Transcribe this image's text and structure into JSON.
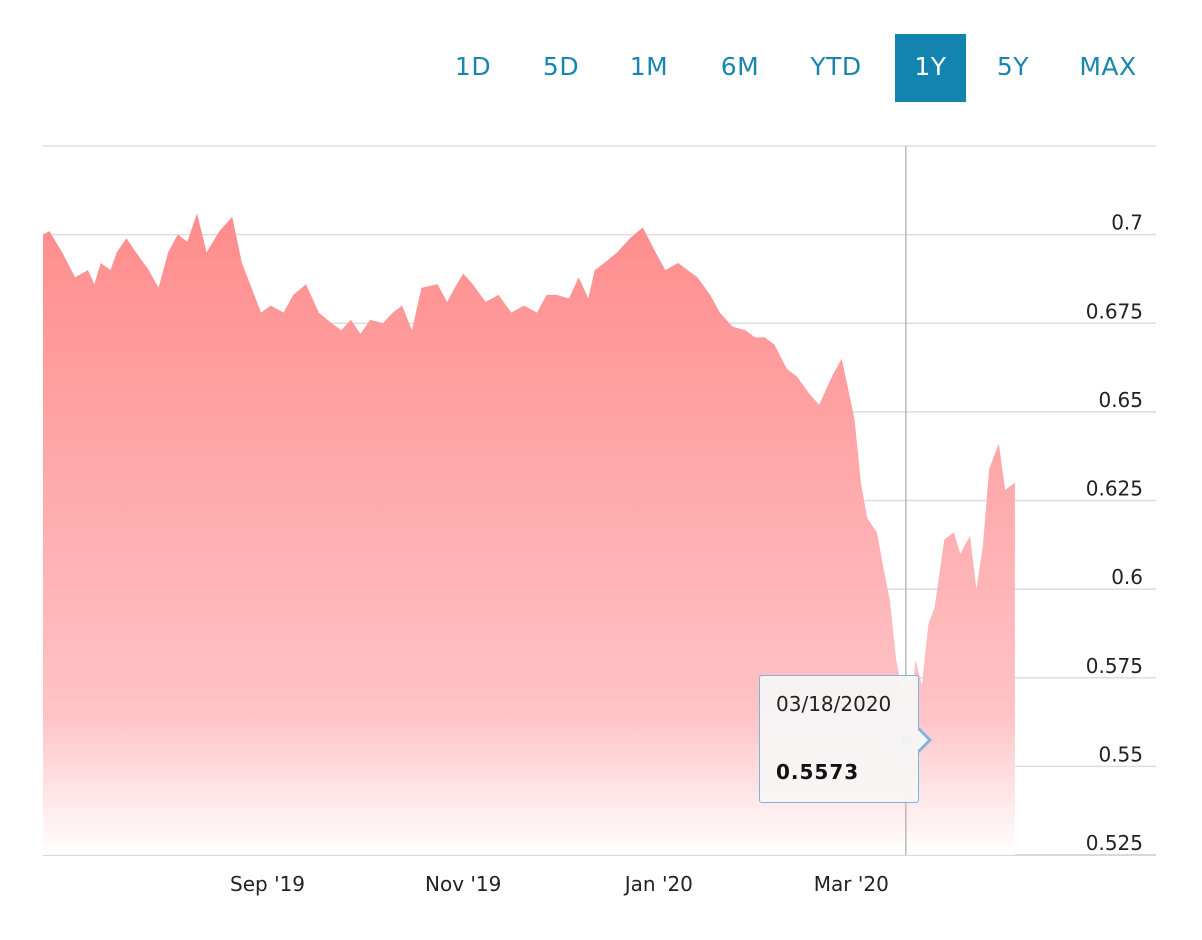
{
  "range_selector": {
    "buttons": [
      "1D",
      "5D",
      "1M",
      "6M",
      "YTD",
      "1Y",
      "5Y",
      "MAX"
    ],
    "active": "1Y"
  },
  "tooltip": {
    "date": "03/18/2020",
    "value": "0.5573"
  },
  "colors": {
    "accent": "#1384b0",
    "area_top": "#ff8c8c",
    "area_bottom": "#ffffff",
    "marker": "#4a90e2"
  },
  "chart_data": {
    "type": "area",
    "xlabel": "",
    "ylabel": "",
    "ylim": [
      0.525,
      0.725
    ],
    "yticks": [
      0.525,
      0.55,
      0.575,
      0.6,
      0.625,
      0.65,
      0.675,
      0.7
    ],
    "ytick_labels": [
      "0.525",
      "0.55",
      "0.575",
      "0.6",
      "0.625",
      "0.65",
      "0.675",
      "0.7"
    ],
    "xlim": [
      "2019-06-23",
      "2020-06-04"
    ],
    "xticks": [
      {
        "date": "2019-09-01",
        "label": "Sep '19"
      },
      {
        "date": "2019-11-01",
        "label": "Nov '19"
      },
      {
        "date": "2020-01-01",
        "label": "Jan '20"
      },
      {
        "date": "2020-03-01",
        "label": "Mar '20"
      }
    ],
    "grid": true,
    "legend": "none",
    "highlight": {
      "date": "2020-03-18",
      "value": 0.5573
    },
    "series": [
      {
        "x": [
          "2019-06-23",
          "2019-06-25",
          "2019-06-29",
          "2019-07-03",
          "2019-07-07",
          "2019-07-09",
          "2019-07-11",
          "2019-07-14",
          "2019-07-16",
          "2019-07-19",
          "2019-07-22",
          "2019-07-26",
          "2019-07-29",
          "2019-08-01",
          "2019-08-04",
          "2019-08-07",
          "2019-08-10",
          "2019-08-13",
          "2019-08-17",
          "2019-08-21",
          "2019-08-24",
          "2019-08-27",
          "2019-08-30",
          "2019-09-02",
          "2019-09-06",
          "2019-09-09",
          "2019-09-13",
          "2019-09-17",
          "2019-09-21",
          "2019-09-24",
          "2019-09-27",
          "2019-09-30",
          "2019-10-03",
          "2019-10-07",
          "2019-10-10",
          "2019-10-13",
          "2019-10-16",
          "2019-10-19",
          "2019-10-24",
          "2019-10-27",
          "2019-10-30",
          "2019-11-01",
          "2019-11-04",
          "2019-11-08",
          "2019-11-12",
          "2019-11-16",
          "2019-11-20",
          "2019-11-24",
          "2019-11-27",
          "2019-11-30",
          "2019-12-04",
          "2019-12-07",
          "2019-12-10",
          "2019-12-12",
          "2019-12-15",
          "2019-12-19",
          "2019-12-23",
          "2019-12-27",
          "2019-12-31",
          "2020-01-03",
          "2020-01-07",
          "2020-01-10",
          "2020-01-13",
          "2020-01-17",
          "2020-01-20",
          "2020-01-24",
          "2020-01-28",
          "2020-01-31",
          "2020-02-03",
          "2020-02-06",
          "2020-02-10",
          "2020-02-13",
          "2020-02-17",
          "2020-02-20",
          "2020-02-24",
          "2020-02-27",
          "2020-03-02",
          "2020-03-04",
          "2020-03-06",
          "2020-03-09",
          "2020-03-11",
          "2020-03-13",
          "2020-03-15",
          "2020-03-17",
          "2020-03-18",
          "2020-03-19",
          "2020-03-21",
          "2020-03-23",
          "2020-03-25",
          "2020-03-27",
          "2020-03-30",
          "2020-04-02",
          "2020-04-04",
          "2020-04-07",
          "2020-04-09",
          "2020-04-11",
          "2020-04-13",
          "2020-04-16",
          "2020-04-18",
          "2020-04-21"
        ],
        "y": [
          0.7,
          0.701,
          0.695,
          0.688,
          0.69,
          0.686,
          0.692,
          0.69,
          0.695,
          0.699,
          0.695,
          0.69,
          0.685,
          0.695,
          0.7,
          0.698,
          0.706,
          0.695,
          0.701,
          0.705,
          0.692,
          0.685,
          0.678,
          0.68,
          0.678,
          0.683,
          0.686,
          0.678,
          0.675,
          0.673,
          0.676,
          0.672,
          0.676,
          0.675,
          0.678,
          0.68,
          0.673,
          0.685,
          0.686,
          0.681,
          0.686,
          0.689,
          0.686,
          0.681,
          0.683,
          0.678,
          0.68,
          0.678,
          0.683,
          0.683,
          0.682,
          0.688,
          0.682,
          0.69,
          0.692,
          0.695,
          0.699,
          0.702,
          0.695,
          0.69,
          0.692,
          0.69,
          0.688,
          0.683,
          0.678,
          0.674,
          0.673,
          0.671,
          0.671,
          0.669,
          0.662,
          0.66,
          0.655,
          0.652,
          0.66,
          0.665,
          0.648,
          0.63,
          0.62,
          0.616,
          0.606,
          0.597,
          0.58,
          0.571,
          0.5573,
          0.56,
          0.58,
          0.573,
          0.59,
          0.595,
          0.614,
          0.616,
          0.61,
          0.615,
          0.6,
          0.612,
          0.634,
          0.641,
          0.628,
          0.63
        ]
      }
    ]
  }
}
